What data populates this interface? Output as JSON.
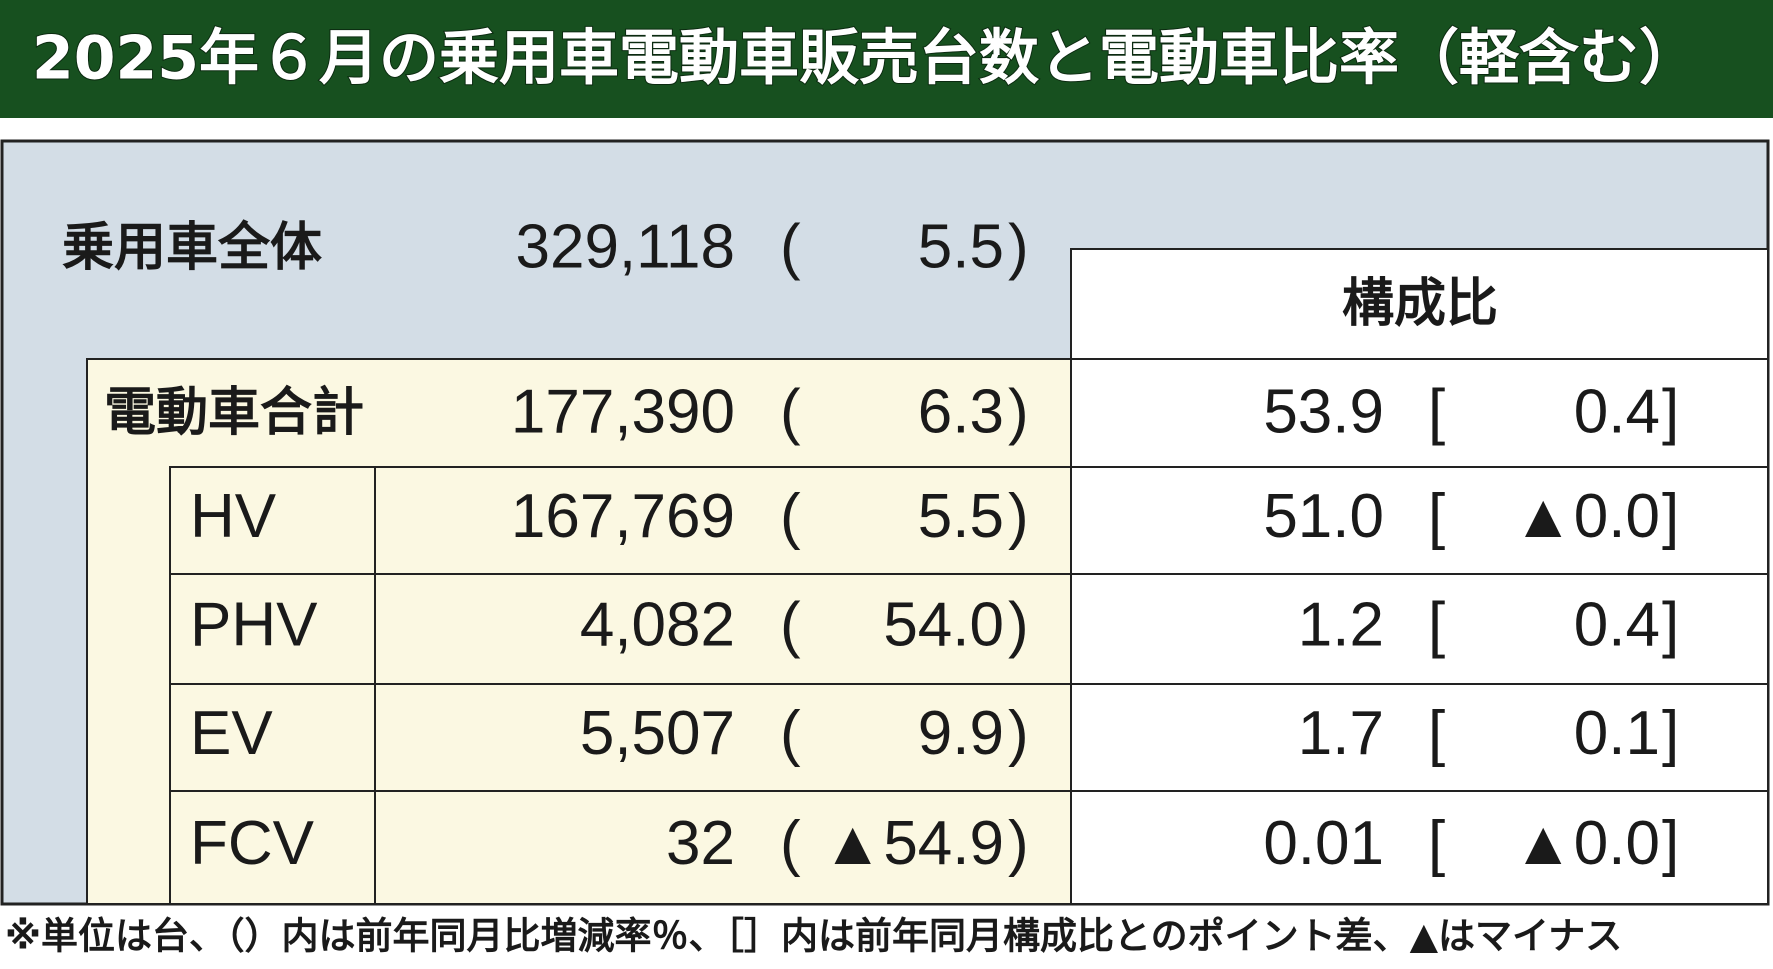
{
  "title": "2025年６月の乗用車電動車販売台数と電動車比率（軽含む）",
  "table": {
    "symbols": {
      "paren_open": "(",
      "paren_close": ")",
      "bracket_open": "[",
      "bracket_close": "]"
    },
    "share_header": "構成比",
    "overall": {
      "label": "乗用車全体",
      "units": "329,118",
      "change": "5.5"
    },
    "ev_total": {
      "label": "電動車合計",
      "units": "177,390",
      "change": "6.3",
      "share": "53.9",
      "share_diff": "0.4"
    },
    "rows": [
      {
        "label": "HV",
        "units": "167,769",
        "change": "5.5",
        "share": "51.0",
        "share_diff": "▲0.0"
      },
      {
        "label": "PHV",
        "units": "4,082",
        "change": "54.0",
        "share": "1.2",
        "share_diff": "0.4"
      },
      {
        "label": "EV",
        "units": "5,507",
        "change": "9.9",
        "share": "1.7",
        "share_diff": "0.1"
      },
      {
        "label": "FCV",
        "units": "32",
        "change": "▲54.9",
        "share": "0.01",
        "share_diff": "▲0.0"
      }
    ]
  },
  "footnote": "※単位は台、（）内は前年同月比増減率％、［］内は前年同月構成比とのポイント差、▲はマイナス"
}
